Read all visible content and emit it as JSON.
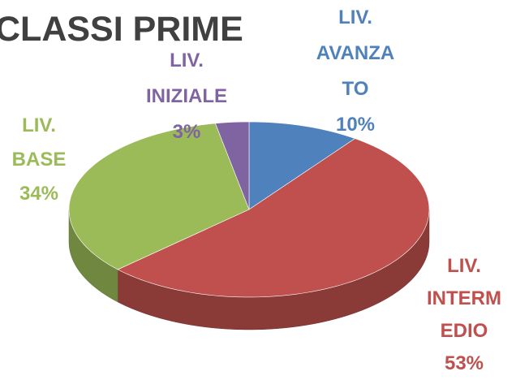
{
  "chart_data": {
    "type": "pie",
    "title": "CLASSI PRIME",
    "categories": [
      "LIV. AVANZATO",
      "LIV. INTERMEDIO",
      "LIV. BASE",
      "LIV. INIZIALE"
    ],
    "values": [
      10,
      53,
      34,
      3
    ],
    "value_labels": [
      "10%",
      "53%",
      "34%",
      "3%"
    ],
    "colors": [
      "#4f81bd",
      "#c0504d",
      "#9bbb59",
      "#8064a2"
    ]
  }
}
